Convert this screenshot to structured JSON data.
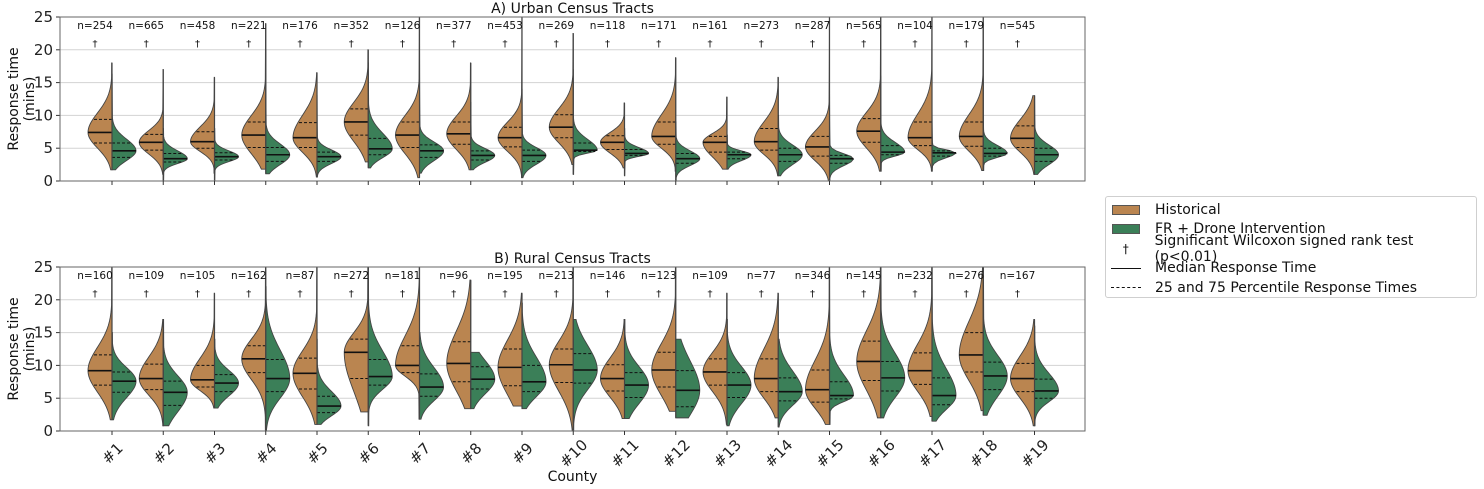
{
  "colors": {
    "historical": "#ba8550",
    "intervention": "#3b7f58",
    "grid": "#d3d3d3",
    "axis": "#666666"
  },
  "legend": {
    "placement": "right-center",
    "items": [
      {
        "label": "Historical",
        "type": "swatch",
        "key": "historical"
      },
      {
        "label": "FR + Drone Intervention",
        "type": "swatch",
        "key": "intervention"
      },
      {
        "label": "Significant Wilcoxon signed rank test (p<0.01)",
        "type": "dagger",
        "symbol": "†"
      },
      {
        "label": "Median Response Time",
        "type": "solid"
      },
      {
        "label": "25 and 75 Percentile Response Times",
        "type": "dashed"
      }
    ]
  },
  "chart_data": [
    {
      "type": "violin",
      "title": "A) Urban Census Tracts",
      "xlabel": "",
      "ylabel": "Response time\n(mins)",
      "ylim": [
        0,
        25
      ],
      "yticks": [
        0,
        5,
        10,
        15,
        20,
        25
      ],
      "grid": true,
      "show_xticklabels": false,
      "significance_symbol": "†",
      "categories": [
        "#1",
        "#2",
        "#3",
        "#4",
        "#5",
        "#6",
        "#7",
        "#8",
        "#9",
        "#10",
        "#11",
        "#12",
        "#13",
        "#14",
        "#15",
        "#16",
        "#17",
        "#18",
        "#19"
      ],
      "n": [
        254,
        665,
        458,
        221,
        176,
        352,
        126,
        377,
        453,
        269,
        118,
        171,
        161,
        273,
        287,
        565,
        104,
        179,
        545
      ],
      "significant": [
        true,
        true,
        true,
        true,
        true,
        true,
        true,
        true,
        true,
        true,
        true,
        true,
        true,
        true,
        true,
        true,
        true,
        true,
        true
      ],
      "series": [
        {
          "name": "Historical",
          "side": "left",
          "median": [
            7.4,
            5.9,
            6.0,
            7.0,
            6.6,
            9.0,
            7.0,
            7.2,
            6.6,
            8.2,
            5.9,
            6.8,
            5.9,
            6.0,
            5.2,
            7.6,
            6.6,
            6.8,
            6.5
          ],
          "q1": [
            5.8,
            4.7,
            5.0,
            5.1,
            5.1,
            7.0,
            5.1,
            5.6,
            5.2,
            6.6,
            4.8,
            5.6,
            4.4,
            4.7,
            3.8,
            5.9,
            5.4,
            5.3,
            5.1
          ],
          "q3": [
            9.4,
            7.1,
            7.5,
            9.0,
            8.9,
            11.0,
            9.0,
            9.0,
            8.2,
            10.1,
            6.9,
            9.0,
            6.8,
            8.0,
            6.8,
            9.5,
            9.0,
            9.0,
            8.4
          ],
          "min": [
            1.7,
            1.0,
            1.2,
            1.8,
            0.6,
            2.9,
            0.5,
            1.7,
            0.5,
            2.5,
            2.0,
            1.5,
            1.8,
            0.8,
            0.0,
            1.5,
            1.5,
            1.6,
            1.0
          ],
          "max": [
            18,
            17,
            15.8,
            24,
            16.5,
            20,
            25,
            18,
            25,
            22.5,
            11.9,
            18.8,
            12.8,
            15.8,
            25,
            25,
            25,
            24,
            13
          ]
        },
        {
          "name": "FR + Drone Intervention",
          "side": "right",
          "median": [
            4.6,
            3.4,
            3.7,
            4.0,
            3.7,
            4.9,
            4.6,
            3.9,
            3.9,
            4.7,
            4.2,
            3.4,
            4.0,
            4.0,
            3.4,
            4.4,
            4.3,
            4.2,
            4.0
          ],
          "q1": [
            3.6,
            2.9,
            3.2,
            3.0,
            3.0,
            4.0,
            3.6,
            3.2,
            3.0,
            4.5,
            3.9,
            2.7,
            3.4,
            3.0,
            2.7,
            4.0,
            3.8,
            3.8,
            3.0
          ],
          "q3": [
            5.8,
            4.2,
            4.3,
            5.1,
            4.4,
            6.5,
            5.5,
            4.6,
            4.7,
            5.8,
            4.8,
            4.2,
            4.4,
            5.0,
            3.9,
            5.4,
            4.6,
            5.0,
            5.0
          ],
          "min": [
            1.7,
            0.0,
            0.0,
            1.1,
            0.6,
            2.0,
            1.2,
            1.7,
            0.5,
            1.0,
            0.8,
            0.0,
            1.8,
            0.8,
            0.0,
            1.5,
            1.5,
            1.6,
            1.0
          ],
          "max": [
            16.3,
            8,
            8,
            20,
            13,
            18,
            25,
            12,
            14,
            17,
            8,
            9,
            7,
            10,
            25,
            16,
            25,
            25,
            13
          ]
        }
      ]
    },
    {
      "type": "violin",
      "title": "B) Rural Census Tracts",
      "xlabel": "County",
      "ylabel": "Response time\n(mins)",
      "ylim": [
        0,
        25
      ],
      "yticks": [
        0,
        5,
        10,
        15,
        20,
        25
      ],
      "grid": true,
      "show_xticklabels": true,
      "significance_symbol": "†",
      "categories": [
        "#1",
        "#2",
        "#3",
        "#4",
        "#5",
        "#6",
        "#7",
        "#8",
        "#9",
        "#10",
        "#11",
        "#12",
        "#13",
        "#14",
        "#15",
        "#16",
        "#17",
        "#18",
        "#19"
      ],
      "n": [
        160,
        109,
        105,
        162,
        87,
        272,
        181,
        96,
        195,
        213,
        146,
        123,
        109,
        77,
        346,
        145,
        232,
        276,
        167
      ],
      "significant": [
        true,
        true,
        true,
        true,
        true,
        true,
        true,
        true,
        true,
        true,
        true,
        true,
        true,
        true,
        true,
        true,
        true,
        true,
        true
      ],
      "series": [
        {
          "name": "Historical",
          "side": "left",
          "median": [
            9.2,
            8.0,
            7.8,
            11.0,
            8.8,
            12.0,
            10.0,
            10.3,
            9.7,
            10.1,
            8.0,
            9.3,
            9.0,
            8.0,
            6.3,
            10.6,
            9.2,
            11.6,
            8.0
          ],
          "q1": [
            7.0,
            6.3,
            6.7,
            8.9,
            6.4,
            8.0,
            8.9,
            7.5,
            6.9,
            7.4,
            6.1,
            6.7,
            7.0,
            6.0,
            4.4,
            7.7,
            7.1,
            9.0,
            6.0
          ],
          "q3": [
            11.6,
            10.2,
            10.0,
            13.0,
            11.1,
            14.0,
            13.0,
            13.6,
            12.5,
            12.5,
            10.1,
            12.0,
            11.0,
            11.0,
            9.3,
            13.7,
            11.9,
            15.0,
            10.3
          ],
          "min": [
            1.7,
            0.8,
            3.5,
            0.0,
            1.0,
            2.9,
            1.8,
            3.4,
            3.8,
            0.0,
            1.9,
            3.0,
            1.0,
            2.0,
            1.0,
            2.0,
            2.2,
            3.1,
            0.8
          ],
          "max": [
            25,
            17,
            21,
            25,
            25,
            25,
            25,
            23,
            21,
            25,
            17,
            25,
            21,
            21,
            25,
            25,
            25,
            25,
            17
          ]
        },
        {
          "name": "FR + Drone Intervention",
          "side": "right",
          "median": [
            7.6,
            5.9,
            7.3,
            8.0,
            3.8,
            8.3,
            6.7,
            7.9,
            7.5,
            9.3,
            7.0,
            6.2,
            7.0,
            6.0,
            5.4,
            8.1,
            5.4,
            8.4,
            6.1
          ],
          "q1": [
            5.9,
            3.9,
            6.0,
            6.0,
            2.8,
            7.0,
            5.3,
            6.4,
            6.0,
            7.3,
            5.1,
            3.7,
            5.1,
            4.6,
            4.9,
            6.1,
            4.0,
            6.3,
            5.0
          ],
          "q3": [
            9.0,
            7.6,
            8.6,
            10.9,
            5.3,
            10.9,
            8.7,
            9.8,
            10.0,
            11.8,
            8.9,
            9.2,
            8.9,
            8.1,
            7.5,
            10.6,
            8.1,
            10.5,
            7.9
          ],
          "min": [
            1.7,
            0.8,
            3.5,
            0.0,
            1.0,
            0.8,
            1.8,
            3.4,
            3.4,
            0.0,
            1.9,
            2.0,
            0.8,
            0.6,
            1.0,
            2.0,
            1.5,
            2.4,
            0.8
          ],
          "max": [
            15,
            17,
            14,
            22,
            14,
            25,
            15,
            12,
            19.5,
            17,
            17,
            14,
            17,
            14,
            25,
            25,
            25,
            25,
            16
          ]
        }
      ]
    }
  ]
}
